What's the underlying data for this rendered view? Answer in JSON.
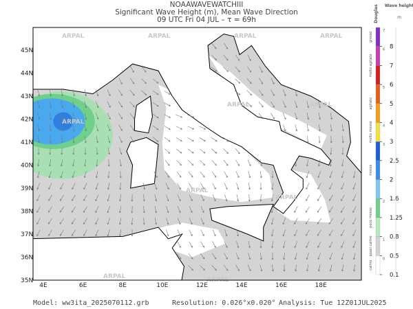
{
  "header": {
    "model": "NOAAWAVEWATCHIII",
    "title": "Significant Wave Height (m), Mean Wave Direction",
    "time": "09 UTC Fri 04 JUL   –   τ = 69h"
  },
  "watermark": "ARPAL",
  "lat_labels": [
    "45N",
    "44N",
    "43N",
    "42N",
    "41N",
    "40N",
    "39N",
    "38N",
    "37N",
    "36N",
    "35N"
  ],
  "lon_labels": [
    "4E",
    "6E",
    "8E",
    "10E",
    "12E",
    "14E",
    "16E",
    "18E"
  ],
  "colorbar": {
    "title": "Wave height",
    "unit": "m",
    "scale_title": "Douglas",
    "ticks": [
      "0.1",
      "0.5",
      "0.8",
      "1.25",
      "1.6",
      "2",
      "2.5",
      "3",
      "4",
      "5",
      "6",
      "7",
      "8"
    ],
    "colors": [
      "#ffffff",
      "#d4d4d4",
      "#b8e8c0",
      "#6fd08c",
      "#7fc8f0",
      "#3a8ee8",
      "#1a5fd0",
      "#f0e040",
      "#f0a020",
      "#e06020",
      "#d02020",
      "#c040b0",
      "#8030c0"
    ],
    "douglas": [
      "0",
      "1",
      "2",
      "3",
      "4",
      "5",
      "6",
      "7"
    ],
    "classes": [
      "calmo",
      "quasi calmo",
      "poco mosso",
      "mosso",
      "molto mosso",
      "agitato",
      "molto agitato",
      "grosso"
    ]
  },
  "footer": {
    "model": "Model:  ww3ita_2025070112.grb",
    "resolution": "Resolution: 0.026°x0.020°",
    "analysis": "Analysis: Tue 12Z01JUL2025"
  }
}
